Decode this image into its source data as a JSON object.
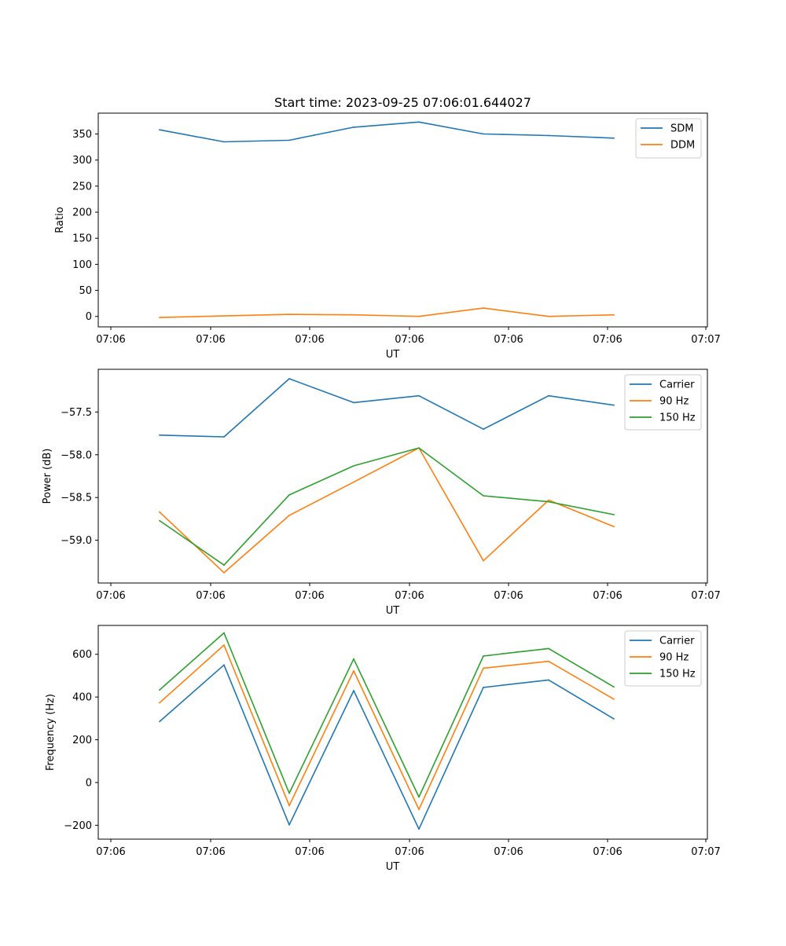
{
  "chart_data": [
    {
      "type": "line",
      "title": "Start time: 2023-09-25 07:06:01.644027",
      "xlabel": "UT",
      "ylabel": "Ratio",
      "xticks": [
        "07:06",
        "07:06",
        "07:06",
        "07:06",
        "07:06",
        "07:06",
        "07:07"
      ],
      "yticks": [
        "0",
        "50",
        "100",
        "150",
        "200",
        "250",
        "300",
        "350"
      ],
      "ylim": [
        -20,
        390
      ],
      "legend_position": "top-right",
      "series": [
        {
          "name": "SDM",
          "color": "#1f77b4",
          "values": [
            358,
            335,
            338,
            363,
            373,
            350,
            347,
            342
          ]
        },
        {
          "name": "DDM",
          "color": "#ff7f0e",
          "values": [
            -2,
            1,
            4,
            3,
            0,
            16,
            0,
            3
          ]
        }
      ]
    },
    {
      "type": "line",
      "title": "",
      "xlabel": "UT",
      "ylabel": "Power (dB)",
      "xticks": [
        "07:06",
        "07:06",
        "07:06",
        "07:06",
        "07:06",
        "07:06",
        "07:07"
      ],
      "yticks": [
        "−59.0",
        "−58.5",
        "−58.0",
        "−57.5"
      ],
      "ylim": [
        -59.5,
        -57.0
      ],
      "legend_position": "top-right",
      "series": [
        {
          "name": "Carrier",
          "color": "#1f77b4",
          "values": [
            -57.77,
            -57.79,
            -57.11,
            -57.39,
            -57.31,
            -57.7,
            -57.31,
            -57.42
          ]
        },
        {
          "name": "90 Hz",
          "color": "#ff7f0e",
          "values": [
            -58.67,
            -59.38,
            -58.71,
            -58.32,
            -57.92,
            -59.24,
            -58.53,
            -58.84
          ]
        },
        {
          "name": "150 Hz",
          "color": "#2ca02c",
          "values": [
            -58.77,
            -59.29,
            -58.47,
            -58.13,
            -57.92,
            -58.48,
            -58.55,
            -58.7
          ]
        }
      ]
    },
    {
      "type": "line",
      "title": "",
      "xlabel": "UT",
      "ylabel": "Frequency (Hz)",
      "xticks": [
        "07:06",
        "07:06",
        "07:06",
        "07:06",
        "07:06",
        "07:06",
        "07:07"
      ],
      "yticks": [
        "−200",
        "0",
        "200",
        "400",
        "600"
      ],
      "ylim": [
        -265,
        735
      ],
      "legend_position": "top-right",
      "series": [
        {
          "name": "Carrier",
          "color": "#1f77b4",
          "values": [
            285,
            550,
            -198,
            430,
            -218,
            445,
            480,
            298
          ]
        },
        {
          "name": "90 Hz",
          "color": "#ff7f0e",
          "values": [
            373,
            643,
            -108,
            522,
            -126,
            535,
            567,
            390
          ]
        },
        {
          "name": "150 Hz",
          "color": "#2ca02c",
          "values": [
            433,
            700,
            -50,
            578,
            -68,
            592,
            627,
            447
          ]
        }
      ]
    }
  ]
}
